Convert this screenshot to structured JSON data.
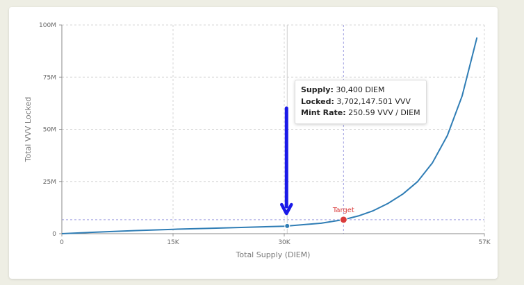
{
  "chart_data": {
    "type": "line",
    "xlabel": "Total Supply (DIEM)",
    "ylabel": "Total VVV Locked",
    "xlim": [
      0,
      57000
    ],
    "ylim": [
      0,
      100000000
    ],
    "x_ticks": [
      {
        "value": 0,
        "label": "0"
      },
      {
        "value": 15000,
        "label": "15K"
      },
      {
        "value": 30000,
        "label": "30K"
      },
      {
        "value": 57000,
        "label": "57K"
      }
    ],
    "y_ticks": [
      {
        "value": 0,
        "label": "0"
      },
      {
        "value": 25000000,
        "label": "25M"
      },
      {
        "value": 50000000,
        "label": "50M"
      },
      {
        "value": 75000000,
        "label": "75M"
      },
      {
        "value": 100000000,
        "label": "100M"
      }
    ],
    "grid": true,
    "series": [
      {
        "x": [
          0,
          5000,
          10000,
          15000,
          20000,
          25000,
          30000,
          35000,
          38000,
          40000,
          42000,
          44000,
          46000,
          48000,
          50000,
          52000,
          54000,
          56000
        ],
        "y": [
          0,
          800000,
          1500000,
          2100000,
          2600000,
          3100000,
          3600000,
          5000000,
          6700000,
          8500000,
          11000000,
          14500000,
          19000000,
          25000000,
          34000000,
          47000000,
          66000000,
          94000000
        ],
        "color": "#2f7db5"
      }
    ],
    "target": {
      "label": "Target",
      "x": 38000,
      "y": 6700000,
      "color": "#d93a3a"
    },
    "hover_point": {
      "x": 30400,
      "y": 3702147.501,
      "color": "#2f7db5"
    },
    "arrow_color": "#1a1ae8"
  },
  "tooltip": {
    "supply_label": "Supply:",
    "supply_value": "30,400 DIEM",
    "locked_label": "Locked:",
    "locked_value": "3,702,147.501 VVV",
    "rate_label": "Mint Rate:",
    "rate_value": "250.59 VVV / DIEM"
  }
}
